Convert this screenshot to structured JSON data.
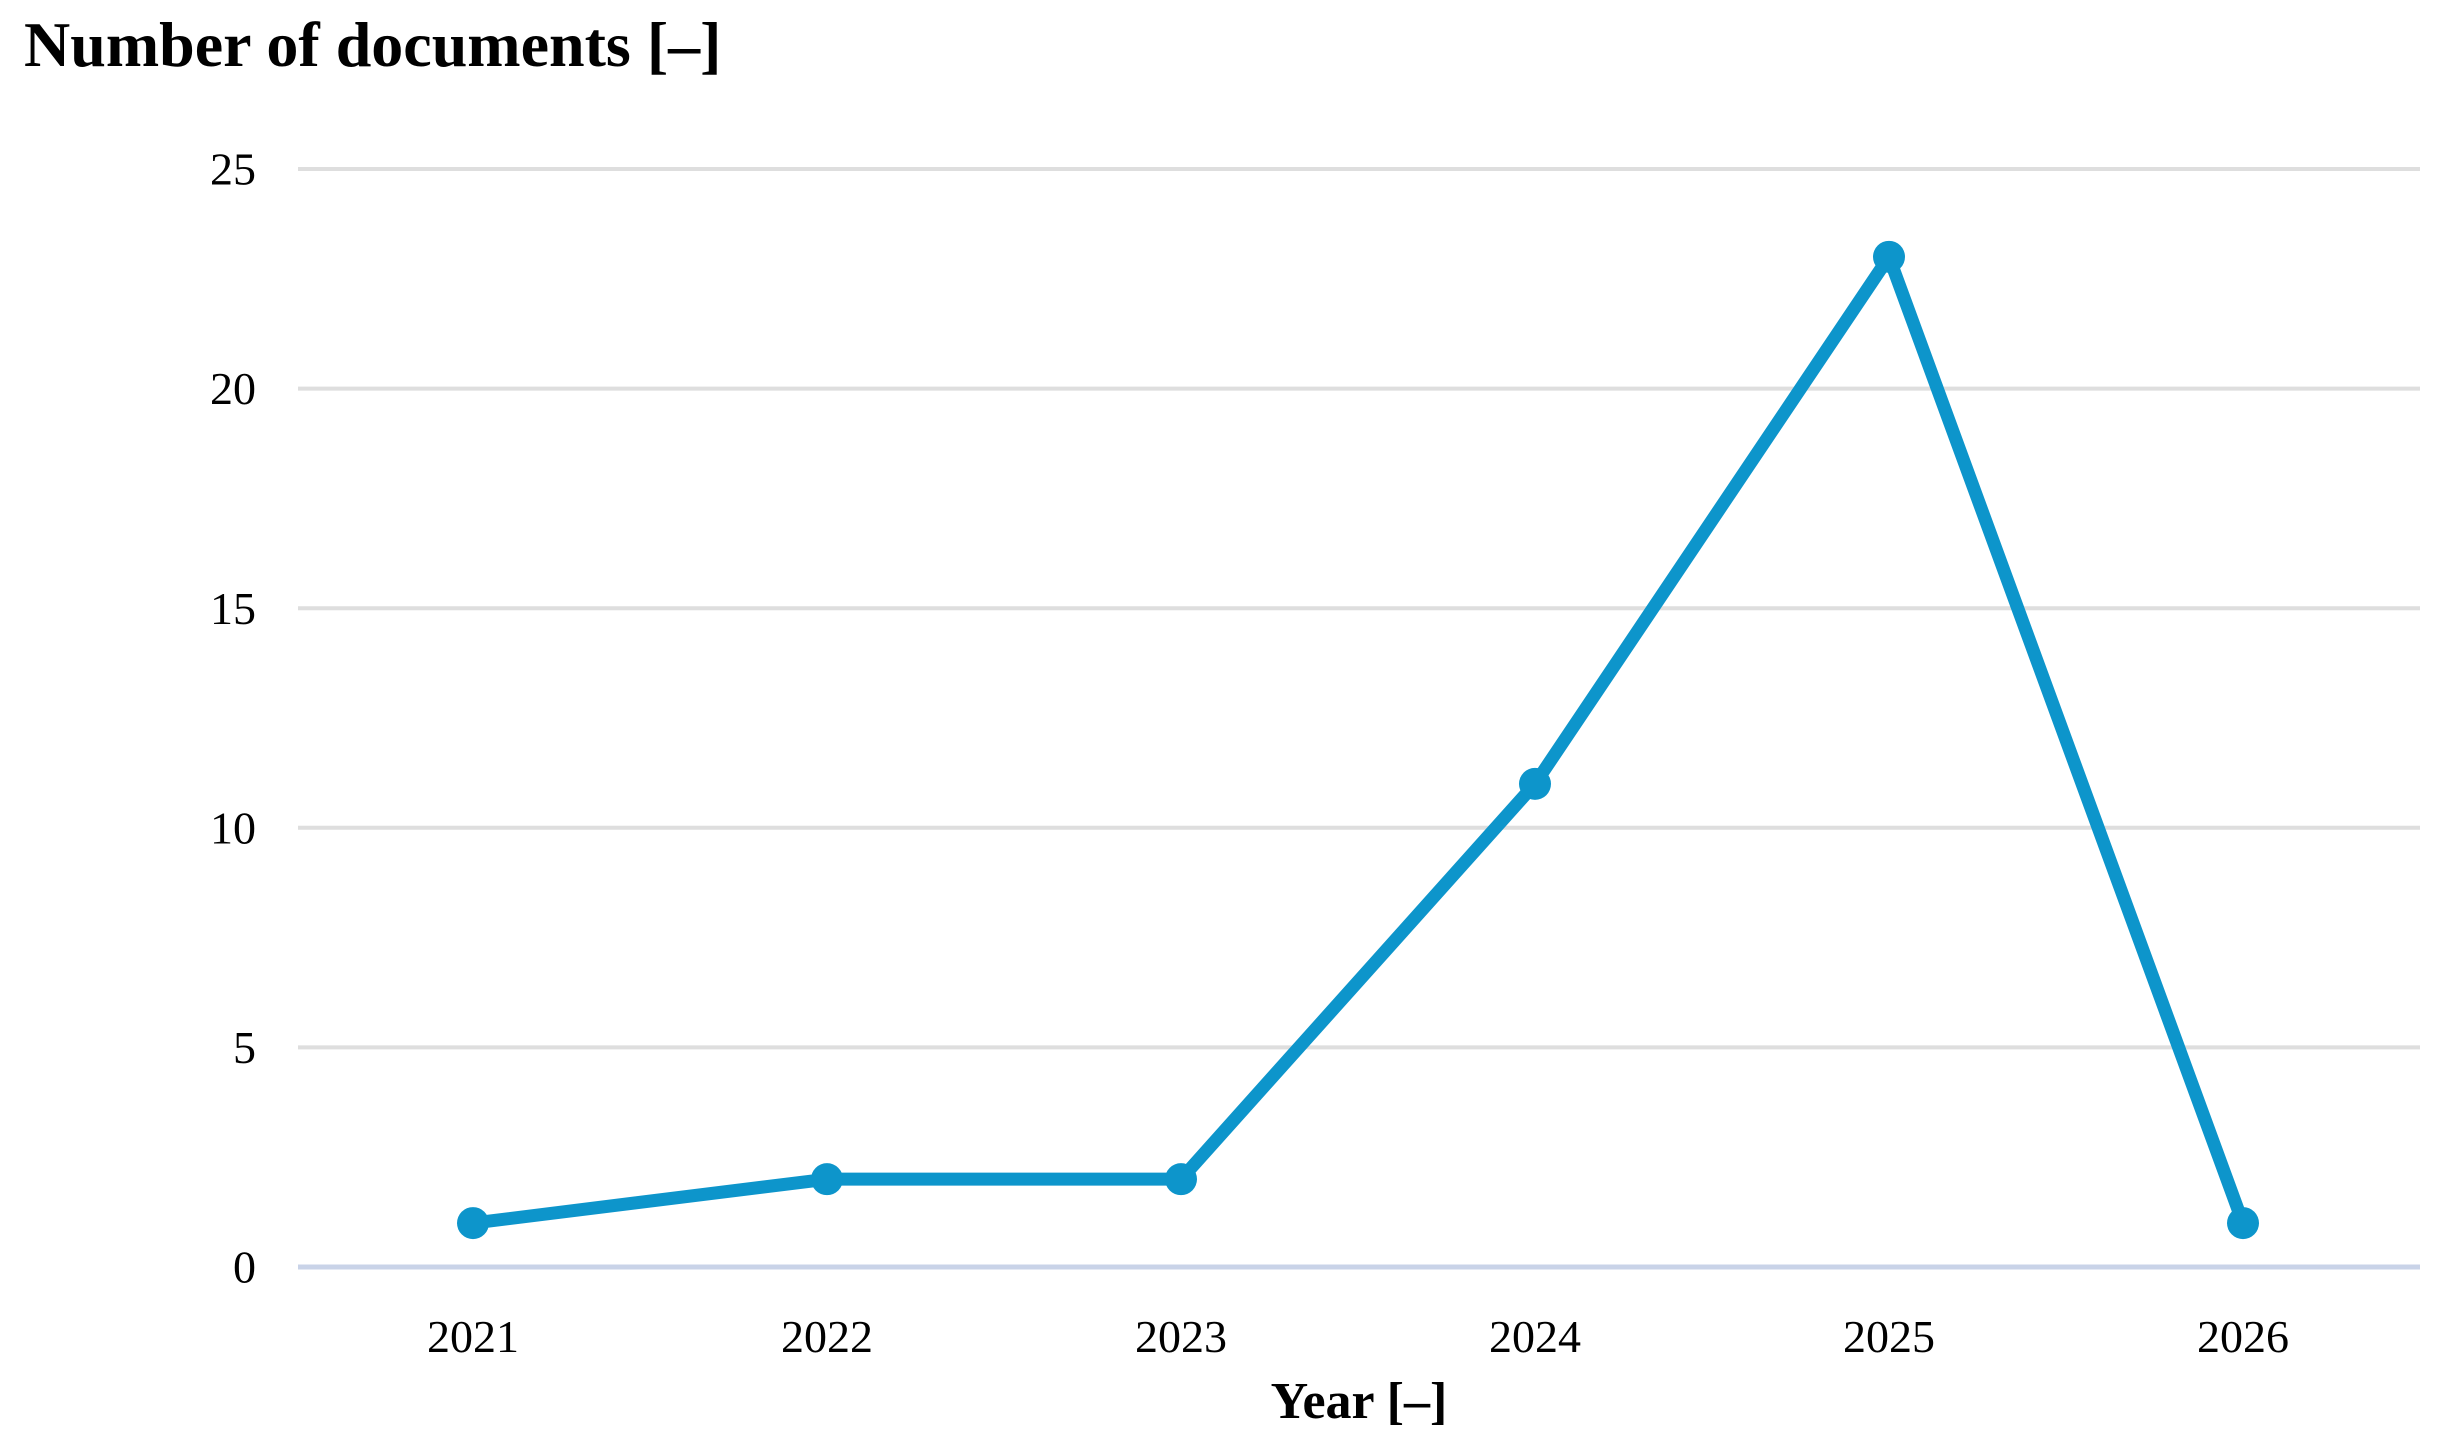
{
  "chart_data": {
    "type": "line",
    "title": "Number of documents [–]",
    "xlabel": "Year [–]",
    "categories": [
      "2021",
      "2022",
      "2023",
      "2024",
      "2025",
      "2026"
    ],
    "values": [
      1,
      2,
      2,
      11,
      23,
      1
    ],
    "ylim": [
      0,
      25
    ],
    "yticks": [
      0,
      5,
      10,
      15,
      20,
      25
    ],
    "grid": true,
    "legend": "none",
    "line_color": "#0D95CB",
    "marker_color": "#0D95CB",
    "gridline_color": "#DEDEDE",
    "axis_line_color": "#C9D3E8",
    "text_color": "#000000"
  }
}
